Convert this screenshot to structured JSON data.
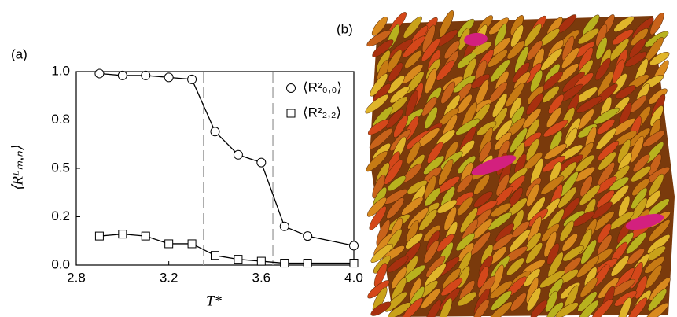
{
  "chart_data": {
    "type": "line",
    "panel_label": "(a)",
    "x_label": "T*",
    "y_label": "⟨Rᴸₘ,ₙ⟩",
    "x": [
      2.9,
      3.0,
      3.1,
      3.2,
      3.3,
      3.4,
      3.5,
      3.6,
      3.7,
      3.8,
      4.0
    ],
    "series": [
      {
        "name": "⟨R²₀,₀⟩",
        "marker": "circle",
        "color": "#000000",
        "values": [
          0.99,
          0.98,
          0.98,
          0.97,
          0.96,
          0.69,
          0.57,
          0.53,
          0.2,
          0.15,
          0.1
        ]
      },
      {
        "name": "⟨R²₂,₂⟩",
        "marker": "square",
        "color": "#000000",
        "values": [
          0.15,
          0.16,
          0.15,
          0.11,
          0.11,
          0.05,
          0.03,
          0.02,
          0.01,
          0.01,
          0.01
        ]
      }
    ],
    "vlines": [
      3.35,
      3.65
    ],
    "xlim": [
      2.8,
      4.0
    ],
    "xticks": [
      {
        "value": 2.8,
        "label": "2.8"
      },
      {
        "value": 3.2,
        "label": "3.2"
      },
      {
        "value": 3.6,
        "label": "3.6"
      },
      {
        "value": 4.0,
        "label": "4.0"
      }
    ],
    "ylim": [
      0,
      1
    ],
    "yticks": [
      {
        "value": 0,
        "label": "0.0"
      },
      {
        "value": 0.25,
        "label": "0.2"
      },
      {
        "value": 0.5,
        "label": "0.5"
      },
      {
        "value": 0.75,
        "label": "0.8"
      },
      {
        "value": 1,
        "label": "1.0"
      }
    ],
    "legend": "upper right"
  },
  "image_panel": {
    "label": "(b)"
  }
}
